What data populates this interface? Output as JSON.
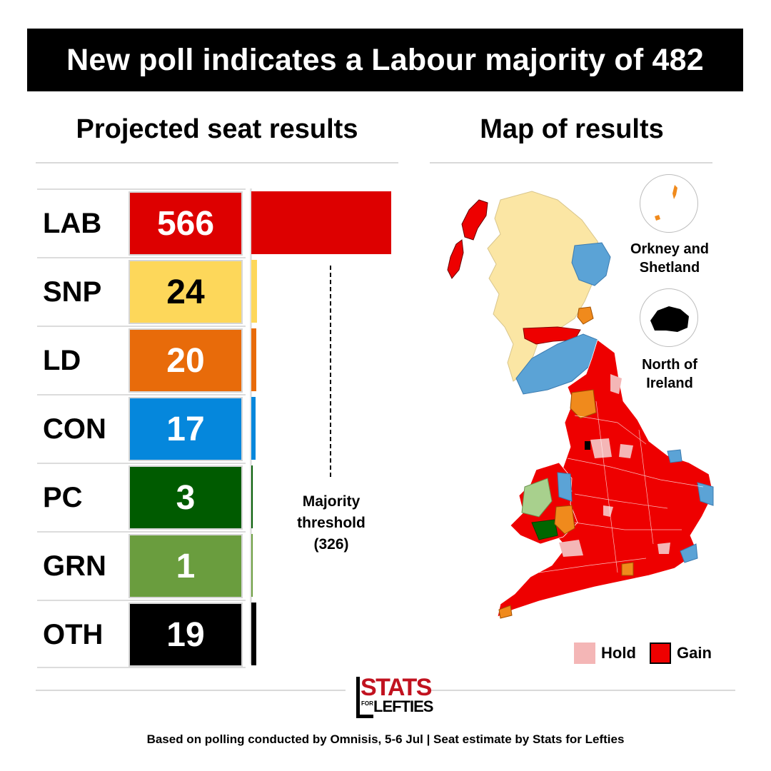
{
  "title": "New poll indicates a Labour majority of 482",
  "left_heading": "Projected seat results",
  "right_heading": "Map of results",
  "chart_data": {
    "type": "bar",
    "orientation": "horizontal",
    "categories": [
      "LAB",
      "SNP",
      "LD",
      "CON",
      "PC",
      "GRN",
      "OTH"
    ],
    "values": [
      566,
      24,
      20,
      17,
      3,
      1,
      19
    ],
    "colors": [
      "#dd0000",
      "#fdd75a",
      "#e86b0a",
      "#0587dc",
      "#005b00",
      "#6a9d3e",
      "#000000"
    ],
    "label_colors": [
      "#ffffff",
      "#000000",
      "#ffffff",
      "#ffffff",
      "#ffffff",
      "#ffffff",
      "#ffffff"
    ],
    "xlim": [
      0,
      566
    ],
    "threshold": {
      "value": 326,
      "label_lines": [
        "Majority",
        "threshold",
        "(326)"
      ]
    }
  },
  "map": {
    "insets": [
      {
        "label_lines": [
          "Orkney and",
          "Shetland"
        ]
      },
      {
        "label_lines": [
          "North of",
          "Ireland"
        ]
      }
    ],
    "legend": [
      {
        "label": "Hold",
        "color": "#f4b6b6"
      },
      {
        "label": "Gain",
        "color": "#ee0000"
      }
    ],
    "colors": {
      "lab": "#ee0000",
      "snp": "#fbe6a4",
      "con": "#5ba3d6",
      "ld": "#f08a1c",
      "pc": "#006600",
      "grn": "#a8d08d",
      "hold": "#f4b6b6"
    }
  },
  "logo": {
    "line1": "STATS",
    "line2": "LEFTIES",
    "small": "FOR"
  },
  "footer": "Based on polling conducted by Omnisis, 5-6 Jul | Seat estimate by Stats for Lefties"
}
